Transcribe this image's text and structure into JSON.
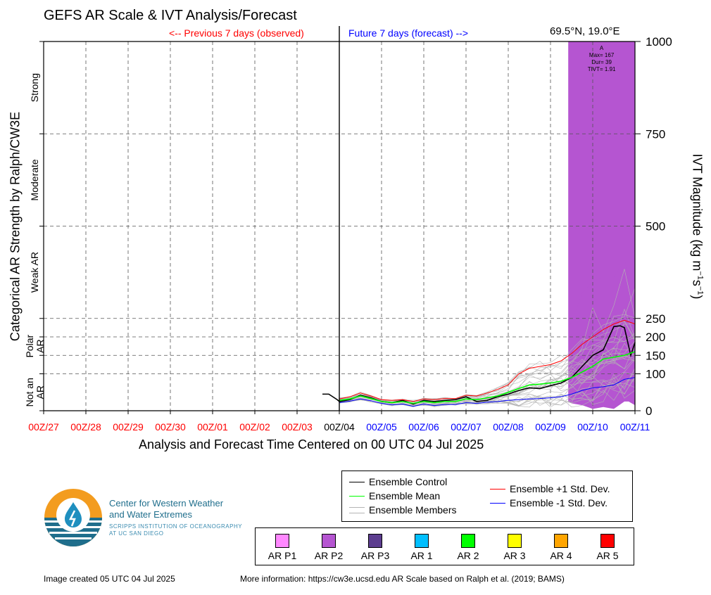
{
  "title": "GEFS AR Scale & IVT Analysis/Forecast",
  "location": "69.5°N, 19.0°E",
  "previous_label": "<-- Previous 7 days (observed)",
  "future_label": "Future 7 days (forecast) -->",
  "xlabel": "Analysis and Forecast Time Centered on 00 UTC 04 Jul 2025",
  "ylabel_right": "IVT Magnitude (kg m⁻¹s⁻¹)",
  "ylabel_left": "Categorical AR Strength by Ralph/CW3E",
  "categories_left": [
    {
      "label": "Strong",
      "y": 875
    },
    {
      "label": "Moderate",
      "y": 625
    },
    {
      "label": "Weak AR",
      "y": 375
    },
    {
      "label": "Polar AR",
      "y": 175
    },
    {
      "label": "Not an AR",
      "y": 50
    }
  ],
  "chart_data": {
    "type": "line",
    "x_ticks": [
      "00Z/27",
      "00Z/28",
      "00Z/29",
      "00Z/30",
      "00Z/01",
      "00Z/02",
      "00Z/03",
      "00Z/04",
      "00Z/05",
      "00Z/06",
      "00Z/07",
      "00Z/08",
      "00Z/09",
      "00Z/10",
      "00Z/11"
    ],
    "x_tick_colors": [
      "#ff0000",
      "#ff0000",
      "#ff0000",
      "#ff0000",
      "#ff0000",
      "#ff0000",
      "#ff0000",
      "#000000",
      "#0000ff",
      "#0000ff",
      "#0000ff",
      "#0000ff",
      "#0000ff",
      "#0000ff",
      "#0000ff"
    ],
    "xlim": [
      -7,
      7
    ],
    "ylim": [
      0,
      1000
    ],
    "y_ticks": [
      0,
      100,
      150,
      200,
      250,
      500,
      750,
      1000
    ],
    "grid": true,
    "series": [
      {
        "name": "Ensemble Control",
        "color": "#000000",
        "points": [
          [
            -0.4,
            45
          ],
          [
            -0.25,
            45
          ],
          [
            -0.05,
            30
          ],
          [
            0,
            25
          ],
          [
            0.25,
            30
          ],
          [
            0.5,
            42
          ],
          [
            0.75,
            35
          ],
          [
            1,
            25
          ],
          [
            1.25,
            22
          ],
          [
            1.5,
            28
          ],
          [
            1.75,
            18
          ],
          [
            2,
            28
          ],
          [
            2.25,
            25
          ],
          [
            2.5,
            28
          ],
          [
            2.75,
            30
          ],
          [
            3,
            38
          ],
          [
            3.25,
            25
          ],
          [
            3.5,
            28
          ],
          [
            3.75,
            38
          ],
          [
            4,
            45
          ],
          [
            4.25,
            55
          ],
          [
            4.5,
            62
          ],
          [
            4.75,
            60
          ],
          [
            5,
            68
          ],
          [
            5.25,
            75
          ],
          [
            5.5,
            90
          ],
          [
            5.75,
            120
          ],
          [
            6,
            150
          ],
          [
            6.25,
            165
          ],
          [
            6.5,
            228
          ],
          [
            6.65,
            230
          ],
          [
            6.75,
            225
          ],
          [
            6.9,
            150
          ],
          [
            7,
            185
          ]
        ]
      },
      {
        "name": "Ensemble Mean",
        "color": "#00ff00",
        "points": [
          [
            0,
            28
          ],
          [
            0.25,
            32
          ],
          [
            0.5,
            40
          ],
          [
            0.75,
            33
          ],
          [
            1,
            25
          ],
          [
            1.25,
            22
          ],
          [
            1.5,
            25
          ],
          [
            1.75,
            20
          ],
          [
            2,
            25
          ],
          [
            2.25,
            22
          ],
          [
            2.5,
            25
          ],
          [
            2.75,
            25
          ],
          [
            3,
            32
          ],
          [
            3.25,
            30
          ],
          [
            3.5,
            35
          ],
          [
            3.75,
            40
          ],
          [
            4,
            50
          ],
          [
            4.25,
            60
          ],
          [
            4.5,
            70
          ],
          [
            4.75,
            72
          ],
          [
            5,
            75
          ],
          [
            5.25,
            80
          ],
          [
            5.5,
            90
          ],
          [
            5.75,
            105
          ],
          [
            6,
            120
          ],
          [
            6.25,
            140
          ],
          [
            6.5,
            145
          ],
          [
            6.75,
            150
          ],
          [
            7,
            160
          ]
        ]
      },
      {
        "name": "Ensemble +1 Std. Dev.",
        "color": "#ff0000",
        "points": [
          [
            0,
            32
          ],
          [
            0.25,
            38
          ],
          [
            0.5,
            48
          ],
          [
            0.75,
            40
          ],
          [
            1,
            30
          ],
          [
            1.25,
            28
          ],
          [
            1.5,
            30
          ],
          [
            1.75,
            25
          ],
          [
            2,
            32
          ],
          [
            2.25,
            30
          ],
          [
            2.5,
            33
          ],
          [
            2.75,
            33
          ],
          [
            3,
            42
          ],
          [
            3.25,
            40
          ],
          [
            3.5,
            48
          ],
          [
            3.75,
            58
          ],
          [
            4,
            70
          ],
          [
            4.25,
            100
          ],
          [
            4.5,
            115
          ],
          [
            4.75,
            120
          ],
          [
            5,
            125
          ],
          [
            5.25,
            135
          ],
          [
            5.5,
            155
          ],
          [
            5.75,
            180
          ],
          [
            6,
            200
          ],
          [
            6.25,
            220
          ],
          [
            6.5,
            235
          ],
          [
            6.75,
            245
          ],
          [
            7,
            235
          ]
        ]
      },
      {
        "name": "Ensemble -1 Std. Dev.",
        "color": "#0000ff",
        "points": [
          [
            0,
            22
          ],
          [
            0.25,
            26
          ],
          [
            0.5,
            32
          ],
          [
            0.75,
            27
          ],
          [
            1,
            20
          ],
          [
            1.25,
            16
          ],
          [
            1.5,
            18
          ],
          [
            1.75,
            12
          ],
          [
            2,
            18
          ],
          [
            2.25,
            14
          ],
          [
            2.5,
            17
          ],
          [
            2.75,
            17
          ],
          [
            3,
            22
          ],
          [
            3.25,
            20
          ],
          [
            3.5,
            23
          ],
          [
            3.75,
            25
          ],
          [
            4,
            28
          ],
          [
            4.25,
            30
          ],
          [
            4.5,
            32
          ],
          [
            4.75,
            33
          ],
          [
            5,
            35
          ],
          [
            5.25,
            38
          ],
          [
            5.5,
            45
          ],
          [
            5.75,
            55
          ],
          [
            6,
            62
          ],
          [
            6.25,
            65
          ],
          [
            6.5,
            70
          ],
          [
            6.75,
            85
          ],
          [
            7,
            90
          ]
        ]
      },
      {
        "name": "Ensemble Members",
        "color": "#b4b4b4",
        "count": 30
      }
    ],
    "ar_event": {
      "category": "AR P2",
      "color": "#b555d1",
      "start": 5.42,
      "end": 7,
      "label_lines": [
        "A",
        "Max= 167",
        "Dur= 39",
        "TIVT= 1.91"
      ]
    },
    "ivt_envelope_upper": [
      [
        5.42,
        230
      ],
      [
        5.5,
        240
      ],
      [
        5.75,
        320
      ],
      [
        6,
        350
      ],
      [
        6.25,
        360
      ],
      [
        6.5,
        360
      ],
      [
        6.75,
        410
      ],
      [
        6.85,
        360
      ],
      [
        7,
        360
      ]
    ],
    "ivt_envelope_lower": [
      [
        5.42,
        25
      ],
      [
        5.5,
        20
      ],
      [
        5.75,
        15
      ],
      [
        6,
        5
      ],
      [
        6.25,
        10
      ],
      [
        6.5,
        5
      ],
      [
        6.75,
        25
      ],
      [
        6.85,
        25
      ],
      [
        7,
        15
      ]
    ]
  },
  "legend": {
    "control": "Ensemble Control",
    "mean": "Ensemble Mean",
    "members": "Ensemble Members",
    "plus": "Ensemble +1 Std. Dev.",
    "minus": "Ensemble -1 Std. Dev."
  },
  "ar_categories": [
    {
      "label": "AR P1",
      "color": "#ff88ff"
    },
    {
      "label": "AR P2",
      "color": "#b555d1"
    },
    {
      "label": "AR P3",
      "color": "#5c3d8f"
    },
    {
      "label": "AR 1",
      "color": "#00bfff"
    },
    {
      "label": "AR 2",
      "color": "#00ff00"
    },
    {
      "label": "AR 3",
      "color": "#ffff00"
    },
    {
      "label": "AR 4",
      "color": "#ffa500"
    },
    {
      "label": "AR 5",
      "color": "#ff0000"
    }
  ],
  "logo": {
    "name_line1": "Center for Western Weather",
    "name_line2": "and Water Extremes",
    "sub_line1": "SCRIPPS INSTITUTION OF OCEANOGRAPHY",
    "sub_line2": "AT UC SAN DIEGO"
  },
  "footer_left": "Image created 05 UTC 04 Jul 2025",
  "footer_right": "More information: https://cw3e.ucsd.edu AR Scale based on Ralph et al. (2019; BAMS)"
}
